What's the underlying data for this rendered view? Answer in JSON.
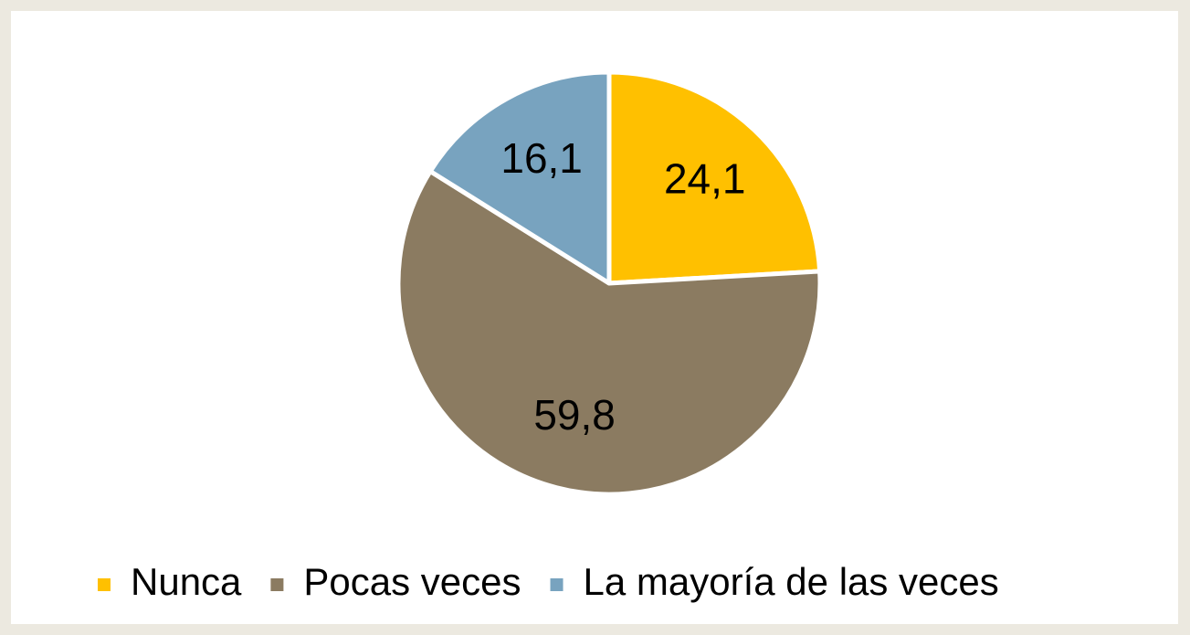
{
  "chart_data": {
    "type": "pie",
    "categories": [
      "Nunca",
      "Pocas veces",
      "La mayoría de las veces"
    ],
    "values": [
      24.1,
      59.8,
      16.1
    ],
    "value_labels": [
      "24,1",
      "59,8",
      "16,1"
    ],
    "colors": [
      "#ffc000",
      "#8b7b61",
      "#78a3bf"
    ],
    "legend": "bottom"
  }
}
